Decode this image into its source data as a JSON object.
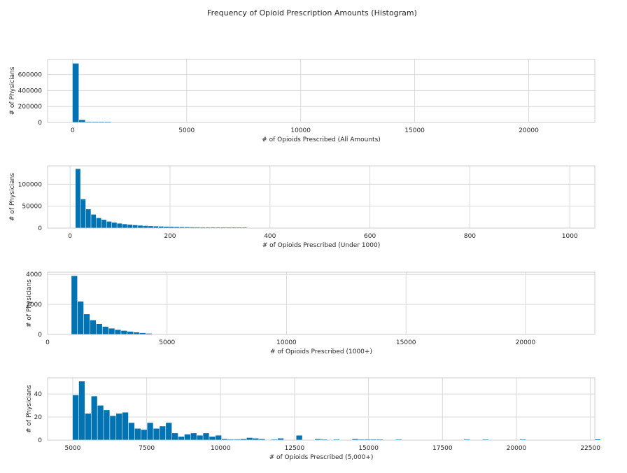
{
  "chart_data": {
    "title": "Frequency of Opioid Prescription Amounts (Histogram)",
    "color": "#0173b2",
    "grid": true,
    "panels": [
      {
        "type": "bar",
        "xlabel": "# of Opioids Prescribed (All Amounts)",
        "ylabel": "# of Physicians",
        "xlim": [
          -1100,
          22900
        ],
        "ylim": [
          0,
          790000
        ],
        "xticks": [
          0,
          5000,
          10000,
          15000,
          20000
        ],
        "xtick_labels": [
          "0",
          "5000",
          "10000",
          "15000",
          "20000"
        ],
        "yticks": [
          0,
          200000,
          400000,
          600000
        ],
        "ytick_labels": [
          "0",
          "200000",
          "400000",
          "600000"
        ],
        "bin_start": 0,
        "bin_width": 282,
        "values": [
          740000,
          32000,
          3500,
          700,
          150,
          50
        ]
      },
      {
        "type": "bar",
        "xlabel": "# of Opioids Prescribed (Under 1000)",
        "ylabel": "# of Physicians",
        "xlim": [
          -45,
          1050
        ],
        "ylim": [
          0,
          142000
        ],
        "xticks": [
          0,
          200,
          400,
          600,
          800,
          1000
        ],
        "xtick_labels": [
          "0",
          "200",
          "400",
          "600",
          "800",
          "1000"
        ],
        "yticks": [
          0,
          50000,
          100000
        ],
        "ytick_labels": [
          "0",
          "50000",
          "100000"
        ],
        "bin_start": 11,
        "bin_width": 10.4,
        "values": [
          135000,
          66000,
          43000,
          31000,
          23000,
          19000,
          15000,
          12500,
          10500,
          9000,
          7800,
          6800,
          5900,
          5200,
          4600,
          4100,
          3700,
          3300,
          3000,
          2700,
          2450,
          2250,
          2050,
          1850,
          1700,
          1550,
          1420,
          1300,
          1200,
          1100,
          1000,
          900,
          800
        ]
      },
      {
        "type": "bar",
        "xlabel": "# of Opioids Prescribed (1000+)",
        "ylabel": "# of Physicians",
        "xlim": [
          0,
          22900
        ],
        "ylim": [
          0,
          4150
        ],
        "xticks": [
          0,
          5000,
          10000,
          15000,
          20000
        ],
        "xtick_labels": [
          "0",
          "5000",
          "10000",
          "15000",
          "20000"
        ],
        "yticks": [
          0,
          2000,
          4000
        ],
        "ytick_labels": [
          "0",
          "2000",
          "4000"
        ],
        "bin_start": 1000,
        "bin_width": 260,
        "values": [
          3900,
          2200,
          1350,
          950,
          700,
          520,
          400,
          310,
          250,
          190,
          140,
          100,
          60
        ]
      },
      {
        "type": "bar",
        "xlabel": "# of Opioids Prescribed (5,000+)",
        "ylabel": "# of Physicians",
        "xlim": [
          4150,
          22650
        ],
        "ylim": [
          0,
          54
        ],
        "xticks": [
          5000,
          7500,
          10000,
          12500,
          15000,
          17500,
          20000,
          22500
        ],
        "xtick_labels": [
          "5000",
          "7500",
          "10000",
          "12500",
          "15000",
          "17500",
          "20000",
          "22500"
        ],
        "yticks": [
          0,
          20,
          40
        ],
        "ytick_labels": [
          "0",
          "20",
          "40"
        ],
        "bin_start": 5000,
        "bin_width": 210,
        "values": [
          39,
          51,
          23,
          38,
          30,
          26,
          21,
          23,
          24,
          15,
          10,
          9,
          15,
          10,
          12,
          15,
          6,
          3,
          5,
          6,
          4,
          6,
          3,
          4,
          1,
          0.5,
          0.5,
          1,
          2,
          1.5,
          1,
          0,
          0.5,
          1.5,
          0,
          0,
          4,
          0,
          0,
          1,
          0.5,
          0,
          0.5,
          0,
          0,
          1,
          0.5,
          0.5,
          0.5,
          0.5,
          0,
          0,
          0.5,
          0,
          0,
          0,
          0,
          0,
          0,
          0,
          0,
          0,
          0,
          0.5,
          0,
          0,
          0.5,
          0,
          0,
          0,
          0,
          0,
          0.5,
          0,
          0,
          0,
          0,
          0,
          0,
          0,
          0,
          0,
          0,
          0,
          0.5,
          0
        ]
      }
    ]
  }
}
